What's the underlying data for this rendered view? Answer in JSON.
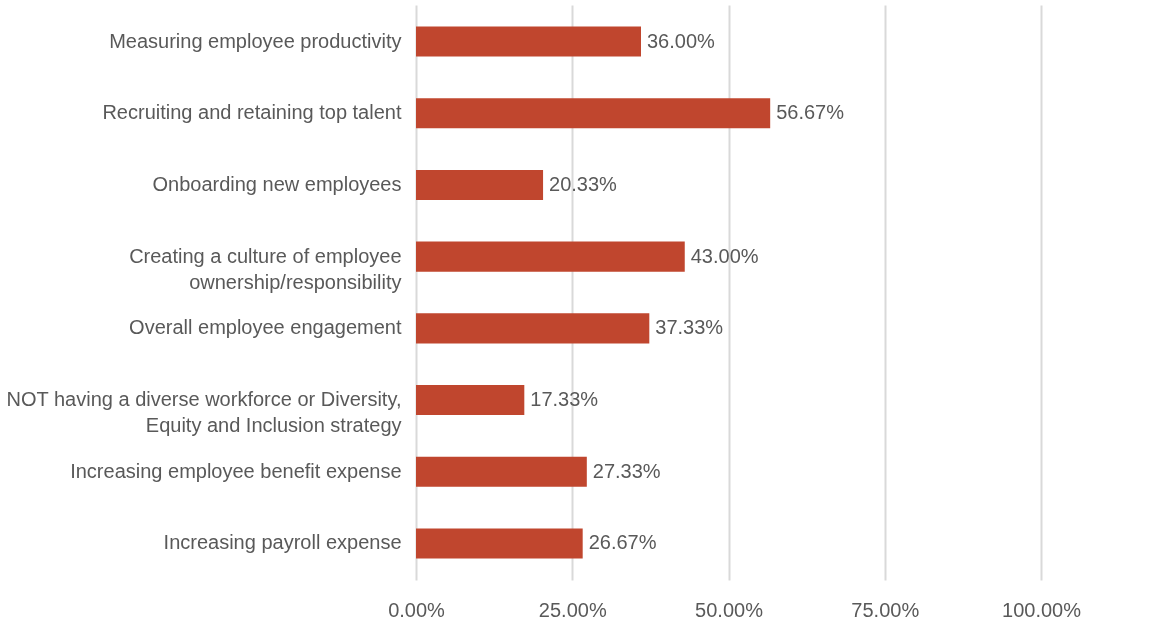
{
  "chart_data": {
    "type": "bar",
    "orientation": "horizontal",
    "categories": [
      "Measuring employee productivity",
      "Recruiting and retaining top talent",
      "Onboarding new employees",
      "Creating a culture of employee ownership/responsibility",
      "Overall employee engagement",
      "NOT having a diverse workforce or Diversity, Equity and Inclusion strategy",
      "Increasing employee benefit expense",
      "Increasing payroll expense"
    ],
    "values": [
      36.0,
      56.67,
      20.33,
      43.0,
      37.33,
      17.33,
      27.33,
      26.67
    ],
    "value_labels": [
      "36.00%",
      "56.67%",
      "20.33%",
      "43.00%",
      "37.33%",
      "17.33%",
      "27.33%",
      "26.67%"
    ],
    "color": "#c0462e",
    "xlim": [
      0,
      100
    ],
    "xticks": [
      {
        "value": 0,
        "label": "0.00%"
      },
      {
        "value": 25,
        "label": "25.00%"
      },
      {
        "value": 50,
        "label": "50.00%"
      },
      {
        "value": 75,
        "label": "75.00%"
      },
      {
        "value": 100,
        "label": "100.00%"
      }
    ],
    "grid": "x"
  }
}
